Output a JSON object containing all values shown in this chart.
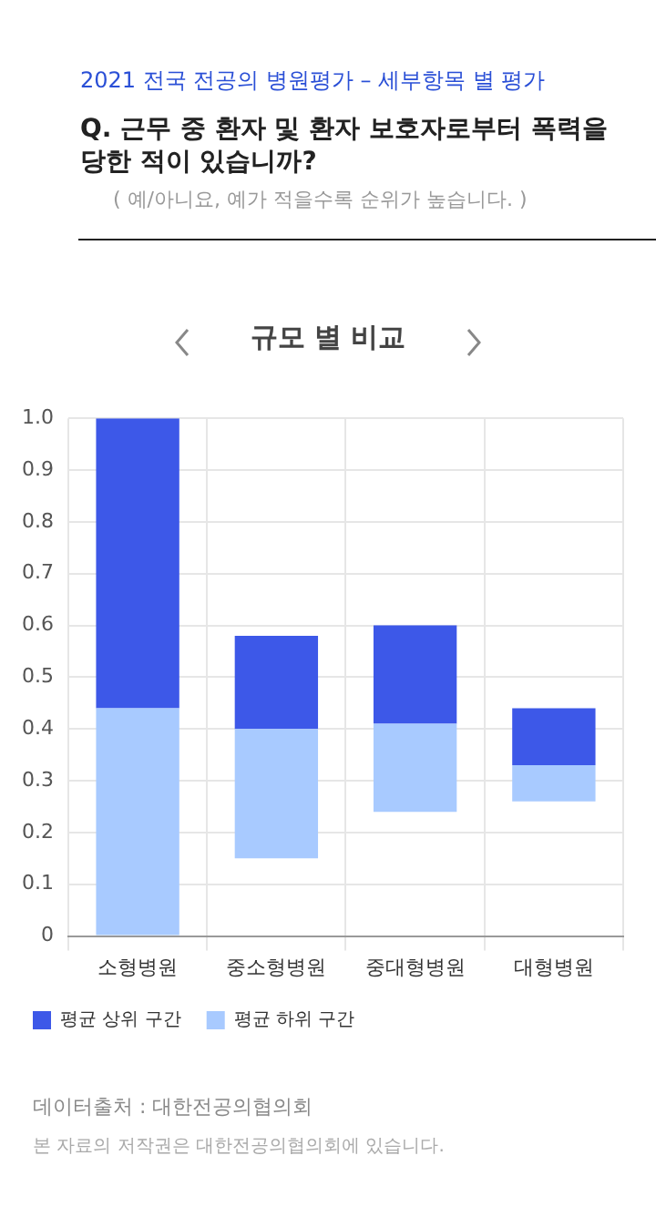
{
  "chart_data": {
    "type": "bar",
    "subtitle": "2021 전국 전공의 병원평가 – 세부항목 별 평가",
    "title": "Q. 근무 중 환자 및 환자 보호자로부터 폭력을 당한 적이 있습니까?",
    "annotations": [
      "( 예/아니요, 예가 적을수록 순위가 높습니다. )",
      "규모 별 비교",
      "데이터출처 : 대한전공의협의회",
      "본 자료의 저작권은 대한전공의협의회에 있습니다."
    ],
    "categories": [
      "소형병원",
      "중소형병원",
      "중대형병원",
      "대형병원"
    ],
    "series": [
      {
        "name": "평균 하위 구간",
        "color": "#a8caff",
        "base": [
          0,
          0.15,
          0.24,
          0.26
        ],
        "values": [
          0.44,
          0.25,
          0.17,
          0.07
        ]
      },
      {
        "name": "평균 상위 구간",
        "color": "#3d58e8",
        "base": [
          0.44,
          0.4,
          0.41,
          0.33
        ],
        "values": [
          0.56,
          0.18,
          0.19,
          0.11
        ]
      }
    ],
    "ylim": [
      0,
      1
    ],
    "yticks": [
      0,
      0.1,
      0.2,
      0.3,
      0.4,
      0.5,
      0.6,
      0.7,
      0.8,
      0.9,
      {
        "value": 1,
        "label": "1.0"
      }
    ],
    "grid": true,
    "legend": "bottom"
  }
}
